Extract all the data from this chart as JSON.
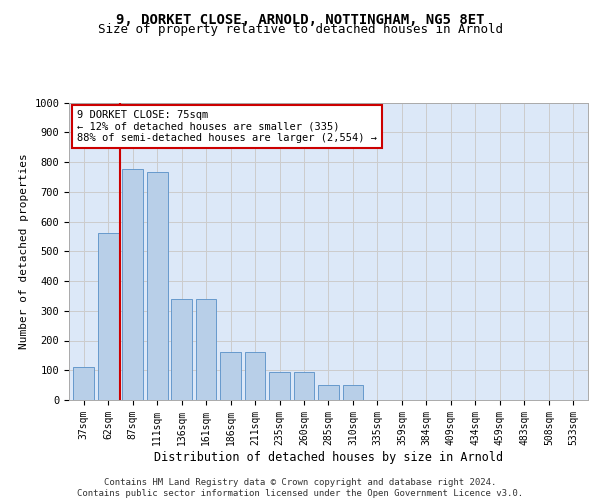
{
  "title_line1": "9, DORKET CLOSE, ARNOLD, NOTTINGHAM, NG5 8ET",
  "title_line2": "Size of property relative to detached houses in Arnold",
  "xlabel": "Distribution of detached houses by size in Arnold",
  "ylabel": "Number of detached properties",
  "categories": [
    "37sqm",
    "62sqm",
    "87sqm",
    "111sqm",
    "136sqm",
    "161sqm",
    "186sqm",
    "211sqm",
    "235sqm",
    "260sqm",
    "285sqm",
    "310sqm",
    "335sqm",
    "359sqm",
    "384sqm",
    "409sqm",
    "434sqm",
    "459sqm",
    "483sqm",
    "508sqm",
    "533sqm"
  ],
  "values": [
    110,
    560,
    775,
    765,
    340,
    340,
    160,
    160,
    95,
    95,
    50,
    50,
    0,
    0,
    0,
    0,
    0,
    0,
    0,
    0,
    0
  ],
  "bar_color": "#b8cfe8",
  "bar_edge_color": "#6699cc",
  "vline_x": 1.5,
  "vline_color": "#cc0000",
  "annotation_text": "9 DORKET CLOSE: 75sqm\n← 12% of detached houses are smaller (335)\n88% of semi-detached houses are larger (2,554) →",
  "annotation_box_color": "#ffffff",
  "annotation_box_edge": "#cc0000",
  "ylim": [
    0,
    1000
  ],
  "yticks": [
    0,
    100,
    200,
    300,
    400,
    500,
    600,
    700,
    800,
    900,
    1000
  ],
  "grid_color": "#cccccc",
  "bg_color": "#dce8f8",
  "footer": "Contains HM Land Registry data © Crown copyright and database right 2024.\nContains public sector information licensed under the Open Government Licence v3.0.",
  "title_fontsize": 10,
  "subtitle_fontsize": 9,
  "tick_fontsize": 7,
  "ylabel_fontsize": 8,
  "xlabel_fontsize": 8.5,
  "footer_fontsize": 6.5
}
